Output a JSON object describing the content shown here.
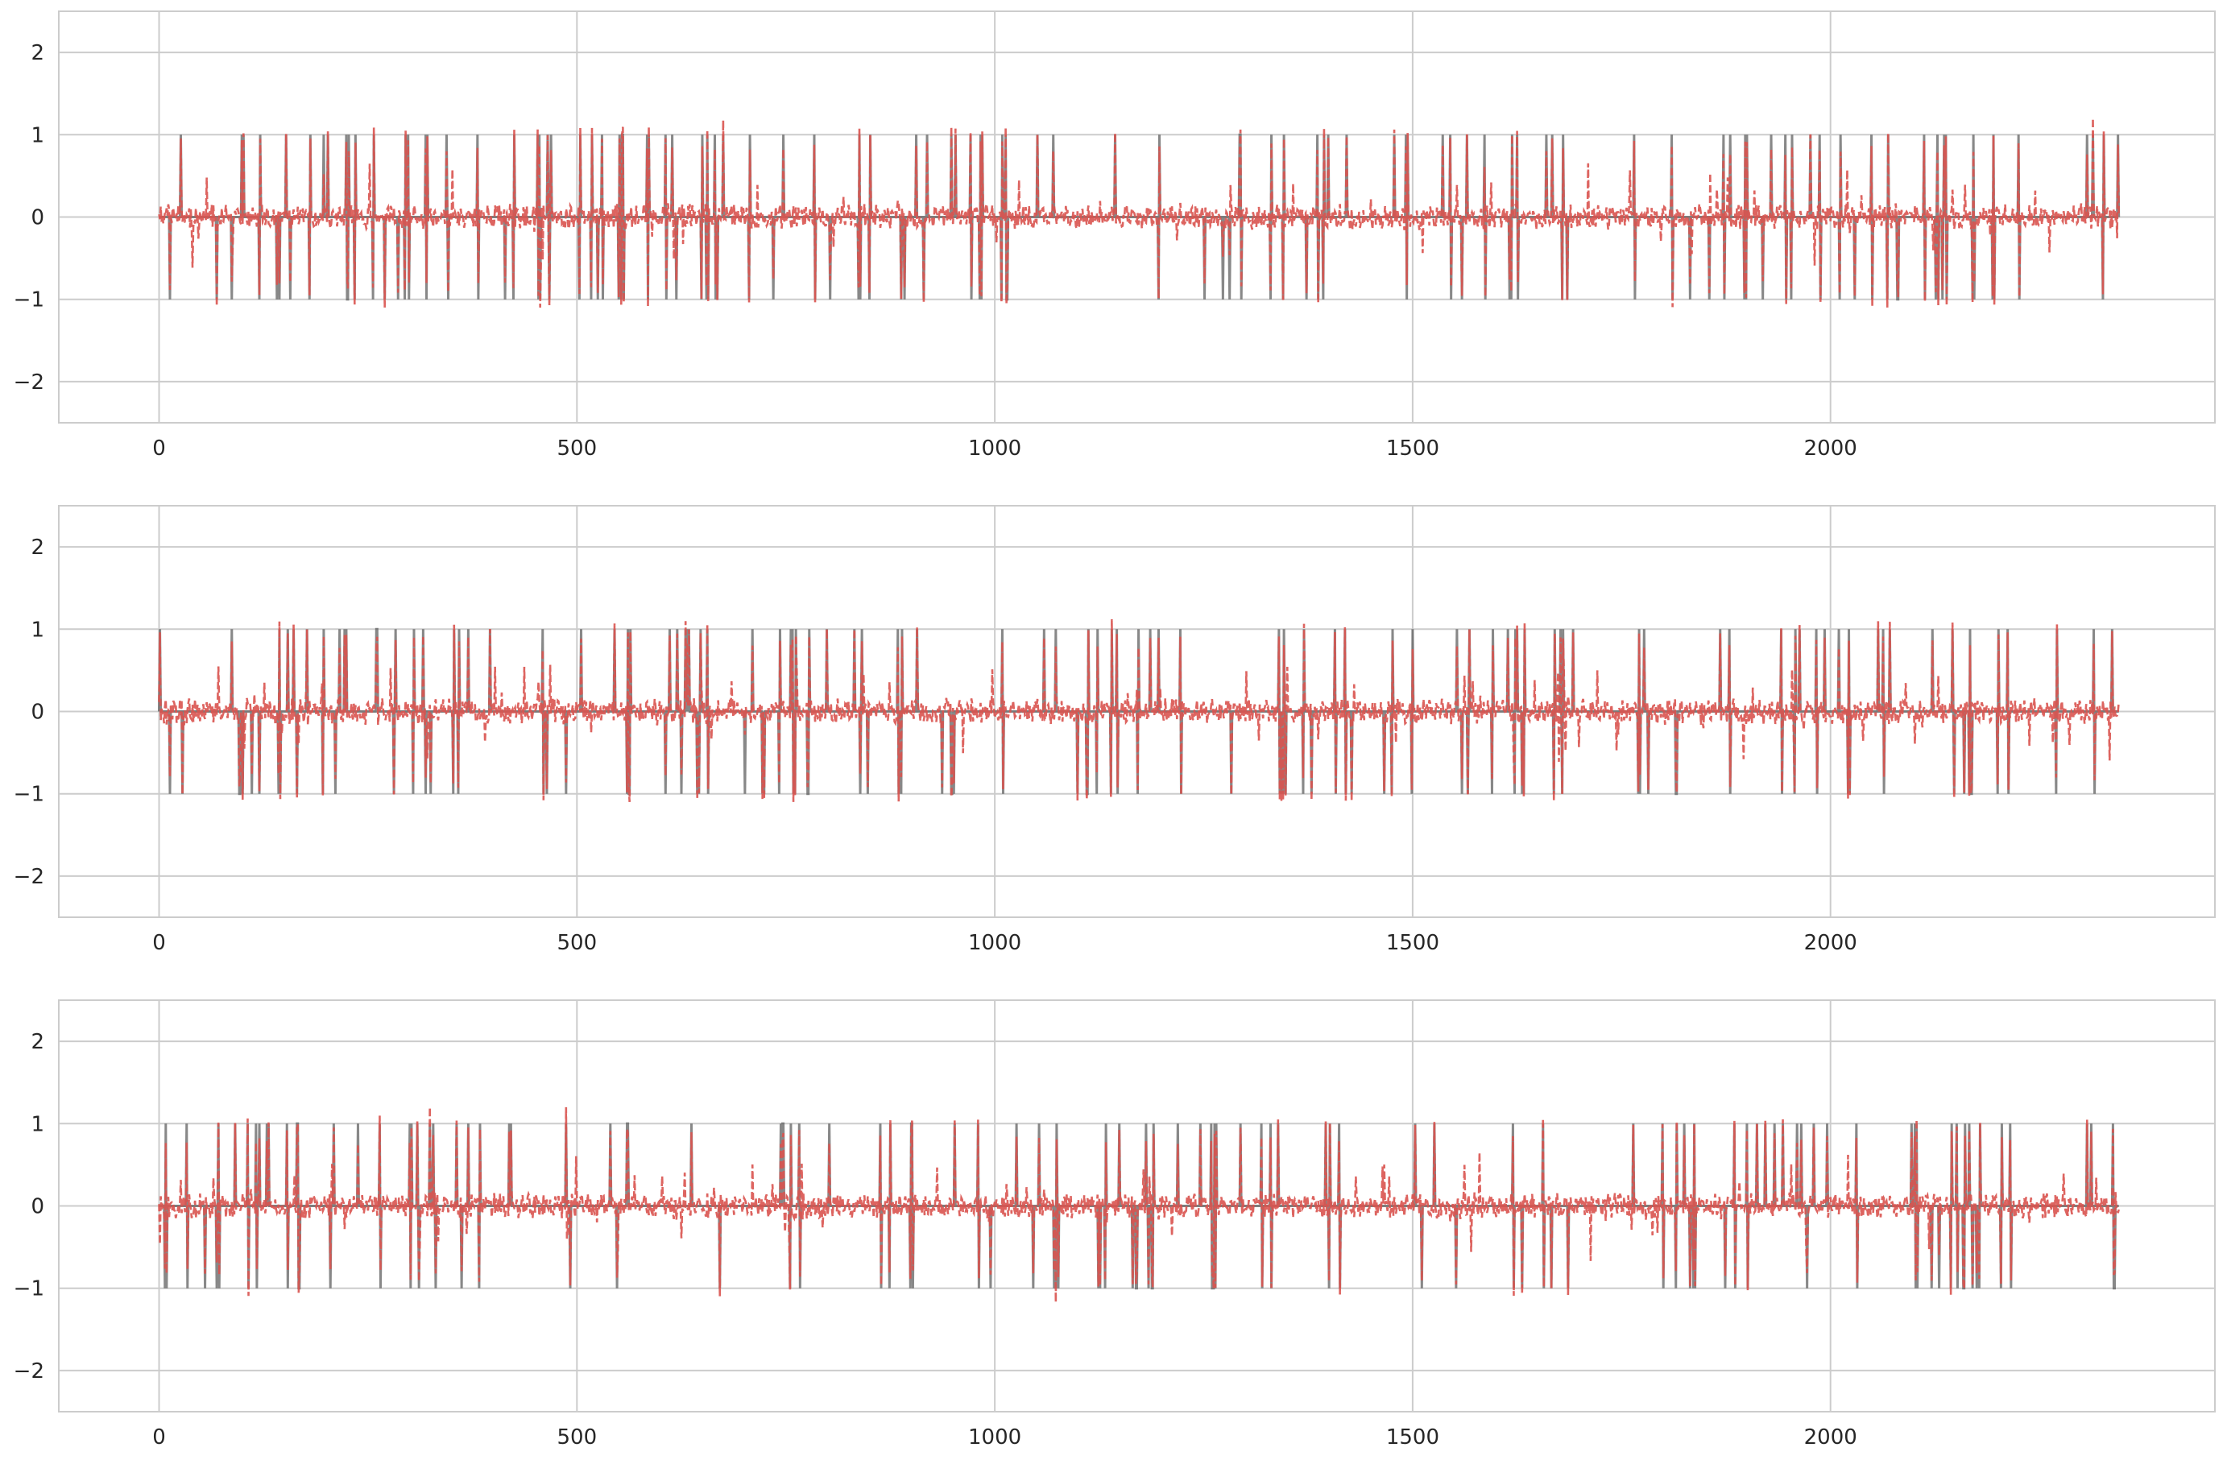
{
  "chart_data": [
    {
      "type": "line",
      "xlim": [
        -120,
        2460
      ],
      "ylim": [
        -2.5,
        2.5
      ],
      "xticks": [
        0,
        500,
        1000,
        1500,
        2000
      ],
      "xtick_labels": [
        "0",
        "500",
        "1000",
        "1500",
        "2000"
      ],
      "yticks": [
        2,
        1,
        0,
        -1,
        -2
      ],
      "ytick_labels": [
        "2",
        "1",
        "0",
        "−1",
        "−2"
      ],
      "grid": true,
      "legend": "none",
      "x_range": [
        0,
        2345
      ],
      "series": [
        {
          "style": "solid",
          "color": "#555555",
          "opacity": 0.7,
          "values_description_levels": [
            -1,
            0,
            1
          ]
        },
        {
          "style": "dashed",
          "color": "#d9534f",
          "opacity": 0.9,
          "range": [
            -1.1,
            1.2
          ]
        }
      ],
      "seed": 11
    },
    {
      "type": "line",
      "xlim": [
        -120,
        2460
      ],
      "ylim": [
        -2.5,
        2.5
      ],
      "xticks": [
        0,
        500,
        1000,
        1500,
        2000
      ],
      "xtick_labels": [
        "0",
        "500",
        "1000",
        "1500",
        "2000"
      ],
      "yticks": [
        2,
        1,
        0,
        -1,
        -2
      ],
      "ytick_labels": [
        "2",
        "1",
        "0",
        "−1",
        "−2"
      ],
      "grid": true,
      "legend": "none",
      "x_range": [
        0,
        2345
      ],
      "series": [
        {
          "style": "solid",
          "color": "#555555",
          "opacity": 0.7,
          "values_description_levels": [
            -1,
            0,
            1
          ]
        },
        {
          "style": "dashed",
          "color": "#d9534f",
          "opacity": 0.9,
          "range": [
            -1.1,
            1.12
          ]
        }
      ],
      "seed": 23
    },
    {
      "type": "line",
      "xlim": [
        -120,
        2460
      ],
      "ylim": [
        -2.5,
        2.5
      ],
      "xticks": [
        0,
        500,
        1000,
        1500,
        2000
      ],
      "xtick_labels": [
        "0",
        "500",
        "1000",
        "1500",
        "2000"
      ],
      "yticks": [
        2,
        1,
        0,
        -1,
        -2
      ],
      "ytick_labels": [
        "2",
        "1",
        "0",
        "−1",
        "−2"
      ],
      "grid": true,
      "legend": "none",
      "x_range": [
        0,
        2345
      ],
      "series": [
        {
          "style": "solid",
          "color": "#555555",
          "opacity": 0.7,
          "values_description_levels": [
            -1,
            0,
            1
          ]
        },
        {
          "style": "dashed",
          "color": "#d9534f",
          "opacity": 0.9,
          "range": [
            -1.18,
            1.2
          ]
        }
      ],
      "seed": 37
    }
  ],
  "colors": {
    "background": "#ffffff",
    "grid": "#cccccc",
    "target_series": "#555555",
    "prediction_series": "#d9534f",
    "tick_text": "#262626"
  }
}
